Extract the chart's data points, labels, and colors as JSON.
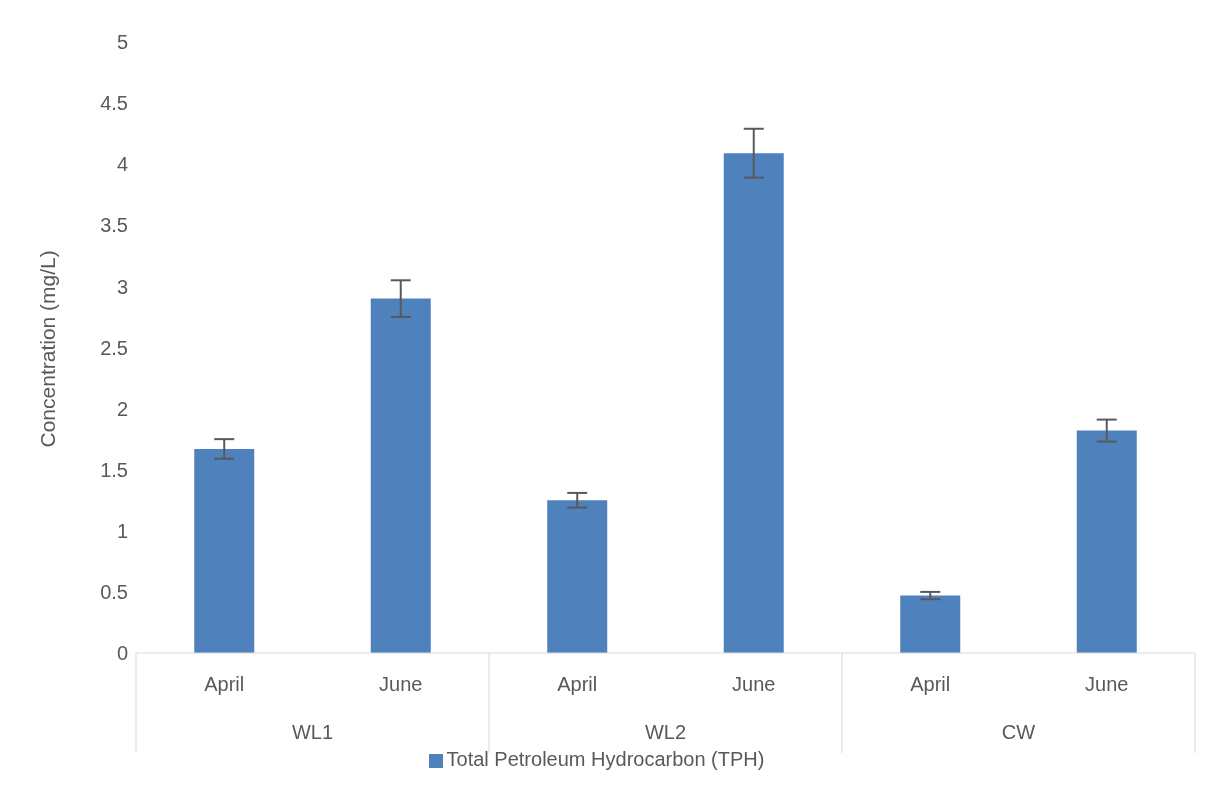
{
  "chart_data": {
    "type": "bar",
    "ylabel": "Concentration  (mg/L)",
    "categories": [
      "April",
      "June",
      "April",
      "June",
      "April",
      "June"
    ],
    "annotations": [
      "WL1",
      "WL2",
      "CW"
    ],
    "series": [
      {
        "name": "Total Petroleum Hydrocarbon (TPH)",
        "color": "#4f81bd",
        "values": [
          1.67,
          2.9,
          1.25,
          4.09,
          0.47,
          1.82
        ],
        "errors": [
          0.08,
          0.15,
          0.06,
          0.2,
          0.03,
          0.09
        ]
      }
    ],
    "ylim": [
      0,
      5
    ],
    "yticks": [
      0,
      0.5,
      1,
      1.5,
      2,
      2.5,
      3,
      3.5,
      4,
      4.5,
      5
    ],
    "grid": false,
    "legend": "bottom"
  }
}
